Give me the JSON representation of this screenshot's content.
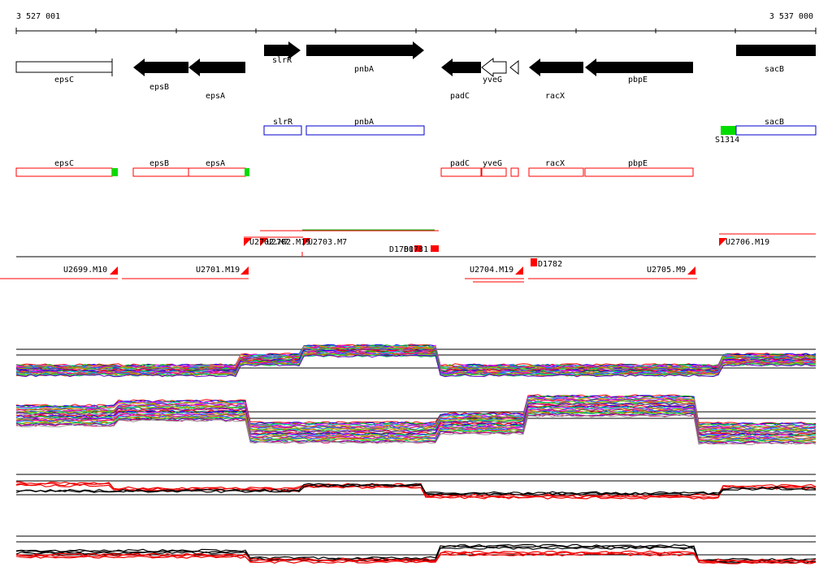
{
  "ruler": {
    "start_label": "3 527 001",
    "end_label": "3 537 000"
  },
  "genes": [
    {
      "label": "epsC",
      "style": "open"
    },
    {
      "label": "epsB",
      "style": "solid"
    },
    {
      "label": "epsA",
      "style": "solid"
    },
    {
      "label": "slrR",
      "style": "solid"
    },
    {
      "label": "pnbA",
      "style": "solid"
    },
    {
      "label": "padC",
      "style": "solid"
    },
    {
      "label": "yveG",
      "style": "open"
    },
    {
      "label": "racX",
      "style": "solid"
    },
    {
      "label": "pbpE",
      "style": "solid"
    },
    {
      "label": "sacB",
      "style": "solid"
    }
  ],
  "blue_track": [
    {
      "label": "slrR"
    },
    {
      "label": "pnbA"
    },
    {
      "label": "S1314",
      "color": "#00dd00"
    },
    {
      "label": "sacB"
    }
  ],
  "red_track": [
    {
      "label": "epsC"
    },
    {
      "label": "epsB"
    },
    {
      "label": "epsA"
    },
    {
      "label": "padC"
    },
    {
      "label": "yveG"
    },
    {
      "label": ""
    },
    {
      "label": "racX"
    },
    {
      "label": "pbpE"
    }
  ],
  "segments": [
    {
      "label": "U2699.M10"
    },
    {
      "label": "U2701.M19"
    },
    {
      "label": "U2702.M7"
    },
    {
      "label": "U2702.M19"
    },
    {
      "label": "U2703.M7"
    },
    {
      "label": "D1780"
    },
    {
      "label": "D1781"
    },
    {
      "label": "U2704.M19"
    },
    {
      "label": "D1782"
    },
    {
      "label": "U2705.M9"
    },
    {
      "label": "U2706.M19"
    }
  ],
  "colors": {
    "gene": "#000000",
    "blue": "#0000cc",
    "red": "#ff0000",
    "green": "#00dd00",
    "profile_red": "#ee0000"
  },
  "profile_palette": [
    "#ff0000",
    "#0000ff",
    "#00aa00",
    "#ff00ff",
    "#00cccc",
    "#ff8800",
    "#8800ff",
    "#888800",
    "#ff0088",
    "#0088ff",
    "#88cc00",
    "#cc6600",
    "#00cc66",
    "#6600cc",
    "#cc0066",
    "#999999"
  ]
}
